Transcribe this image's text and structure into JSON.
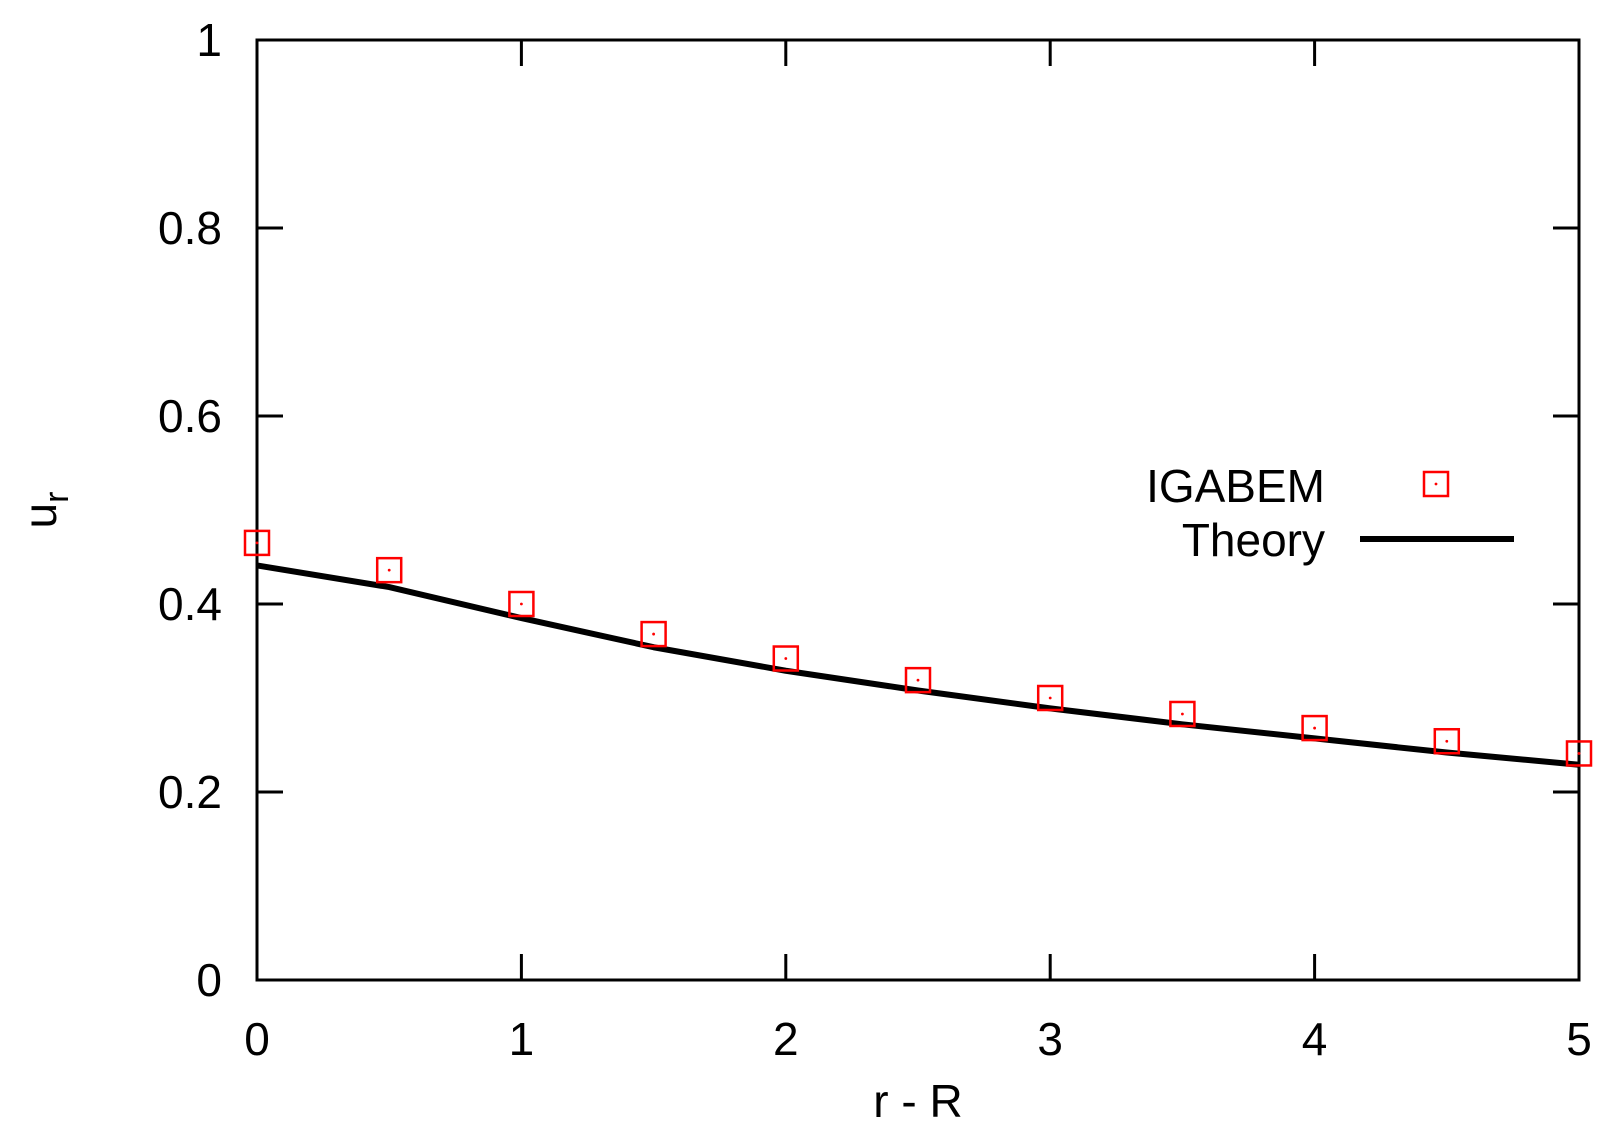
{
  "chart_data": {
    "type": "scatter",
    "xlabel": "r - R",
    "ylabel": {
      "main": "u",
      "subscript": "r"
    },
    "xlim": [
      0,
      5
    ],
    "ylim": [
      0,
      1
    ],
    "xticks": [
      0,
      1,
      2,
      3,
      4,
      5
    ],
    "xtick_labels": [
      "0",
      "1",
      "2",
      "3",
      "4",
      "5"
    ],
    "yticks": [
      0,
      0.2,
      0.4,
      0.6,
      0.8,
      1
    ],
    "ytick_labels": [
      "0",
      "0.2",
      "0.4",
      "0.6",
      "0.8",
      "1"
    ],
    "grid": false,
    "legend_position": "right",
    "series": [
      {
        "name": "IGABEM",
        "kind": "markers",
        "marker": "open-square-with-dot",
        "color": "#ff0000",
        "x": [
          0,
          0.5,
          1,
          1.5,
          2,
          2.5,
          3,
          3.5,
          4,
          4.5,
          5
        ],
        "y": [
          0.465,
          0.436,
          0.4,
          0.368,
          0.342,
          0.319,
          0.3,
          0.283,
          0.268,
          0.254,
          0.241
        ]
      },
      {
        "name": "Theory",
        "kind": "line",
        "color": "#000000",
        "x": [
          0,
          0.5,
          1,
          1.5,
          2,
          2.5,
          3,
          3.5,
          4,
          4.5,
          5
        ],
        "y": [
          0.441,
          0.418,
          0.385,
          0.354,
          0.329,
          0.308,
          0.289,
          0.272,
          0.257,
          0.242,
          0.229
        ]
      }
    ]
  }
}
